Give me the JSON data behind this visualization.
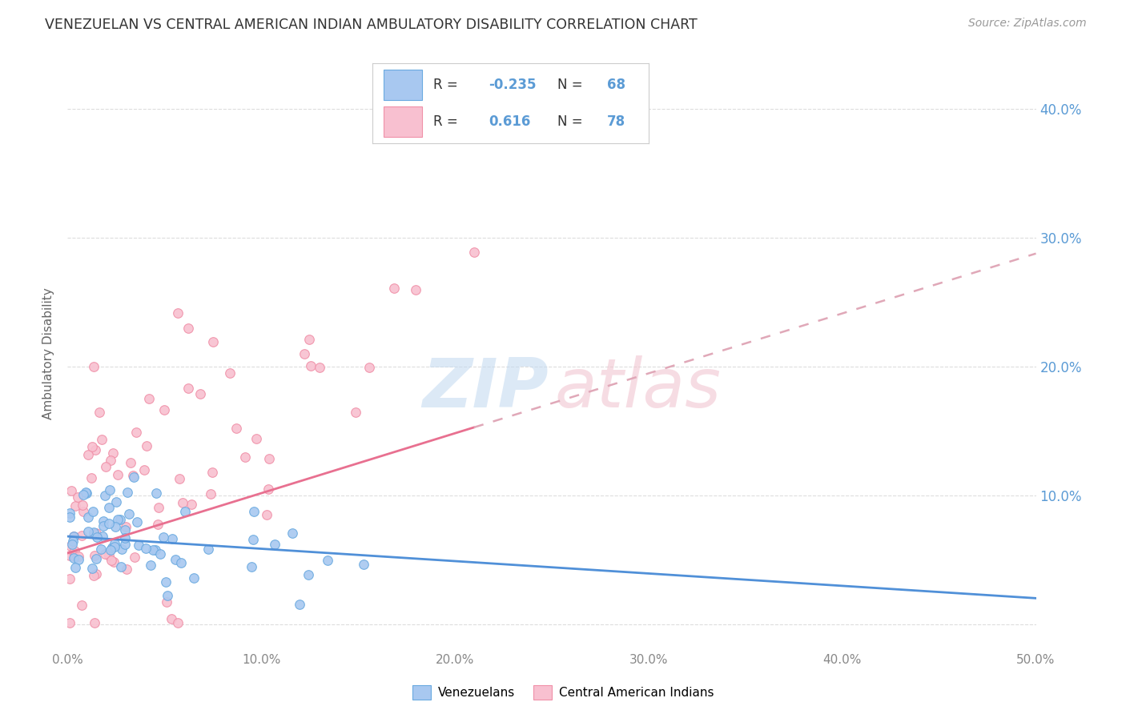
{
  "title": "VENEZUELAN VS CENTRAL AMERICAN INDIAN AMBULATORY DISABILITY CORRELATION CHART",
  "source": "Source: ZipAtlas.com",
  "ylabel": "Ambulatory Disability",
  "xlim": [
    0.0,
    0.5
  ],
  "ylim": [
    -0.02,
    0.44
  ],
  "legend_labels": [
    "Venezuelans",
    "Central American Indians"
  ],
  "legend_r_venezuelan": "-0.235",
  "legend_n_venezuelan": "68",
  "legend_r_central": "0.616",
  "legend_n_central": "78",
  "color_venezuelan_fill": "#A8C8F0",
  "color_venezuelan_edge": "#6AAAE0",
  "color_central_fill": "#F8C0D0",
  "color_central_edge": "#F090A8",
  "color_line_venezuelan": "#5090D8",
  "color_line_central_solid": "#E87090",
  "color_line_central_dash": "#E0A8B8",
  "color_right_axis": "#5B9BD5",
  "color_grid": "#DDDDDD",
  "background_color": "#FFFFFF",
  "watermark_zip_color": "#C0D8F0",
  "watermark_atlas_color": "#F0C0CC"
}
